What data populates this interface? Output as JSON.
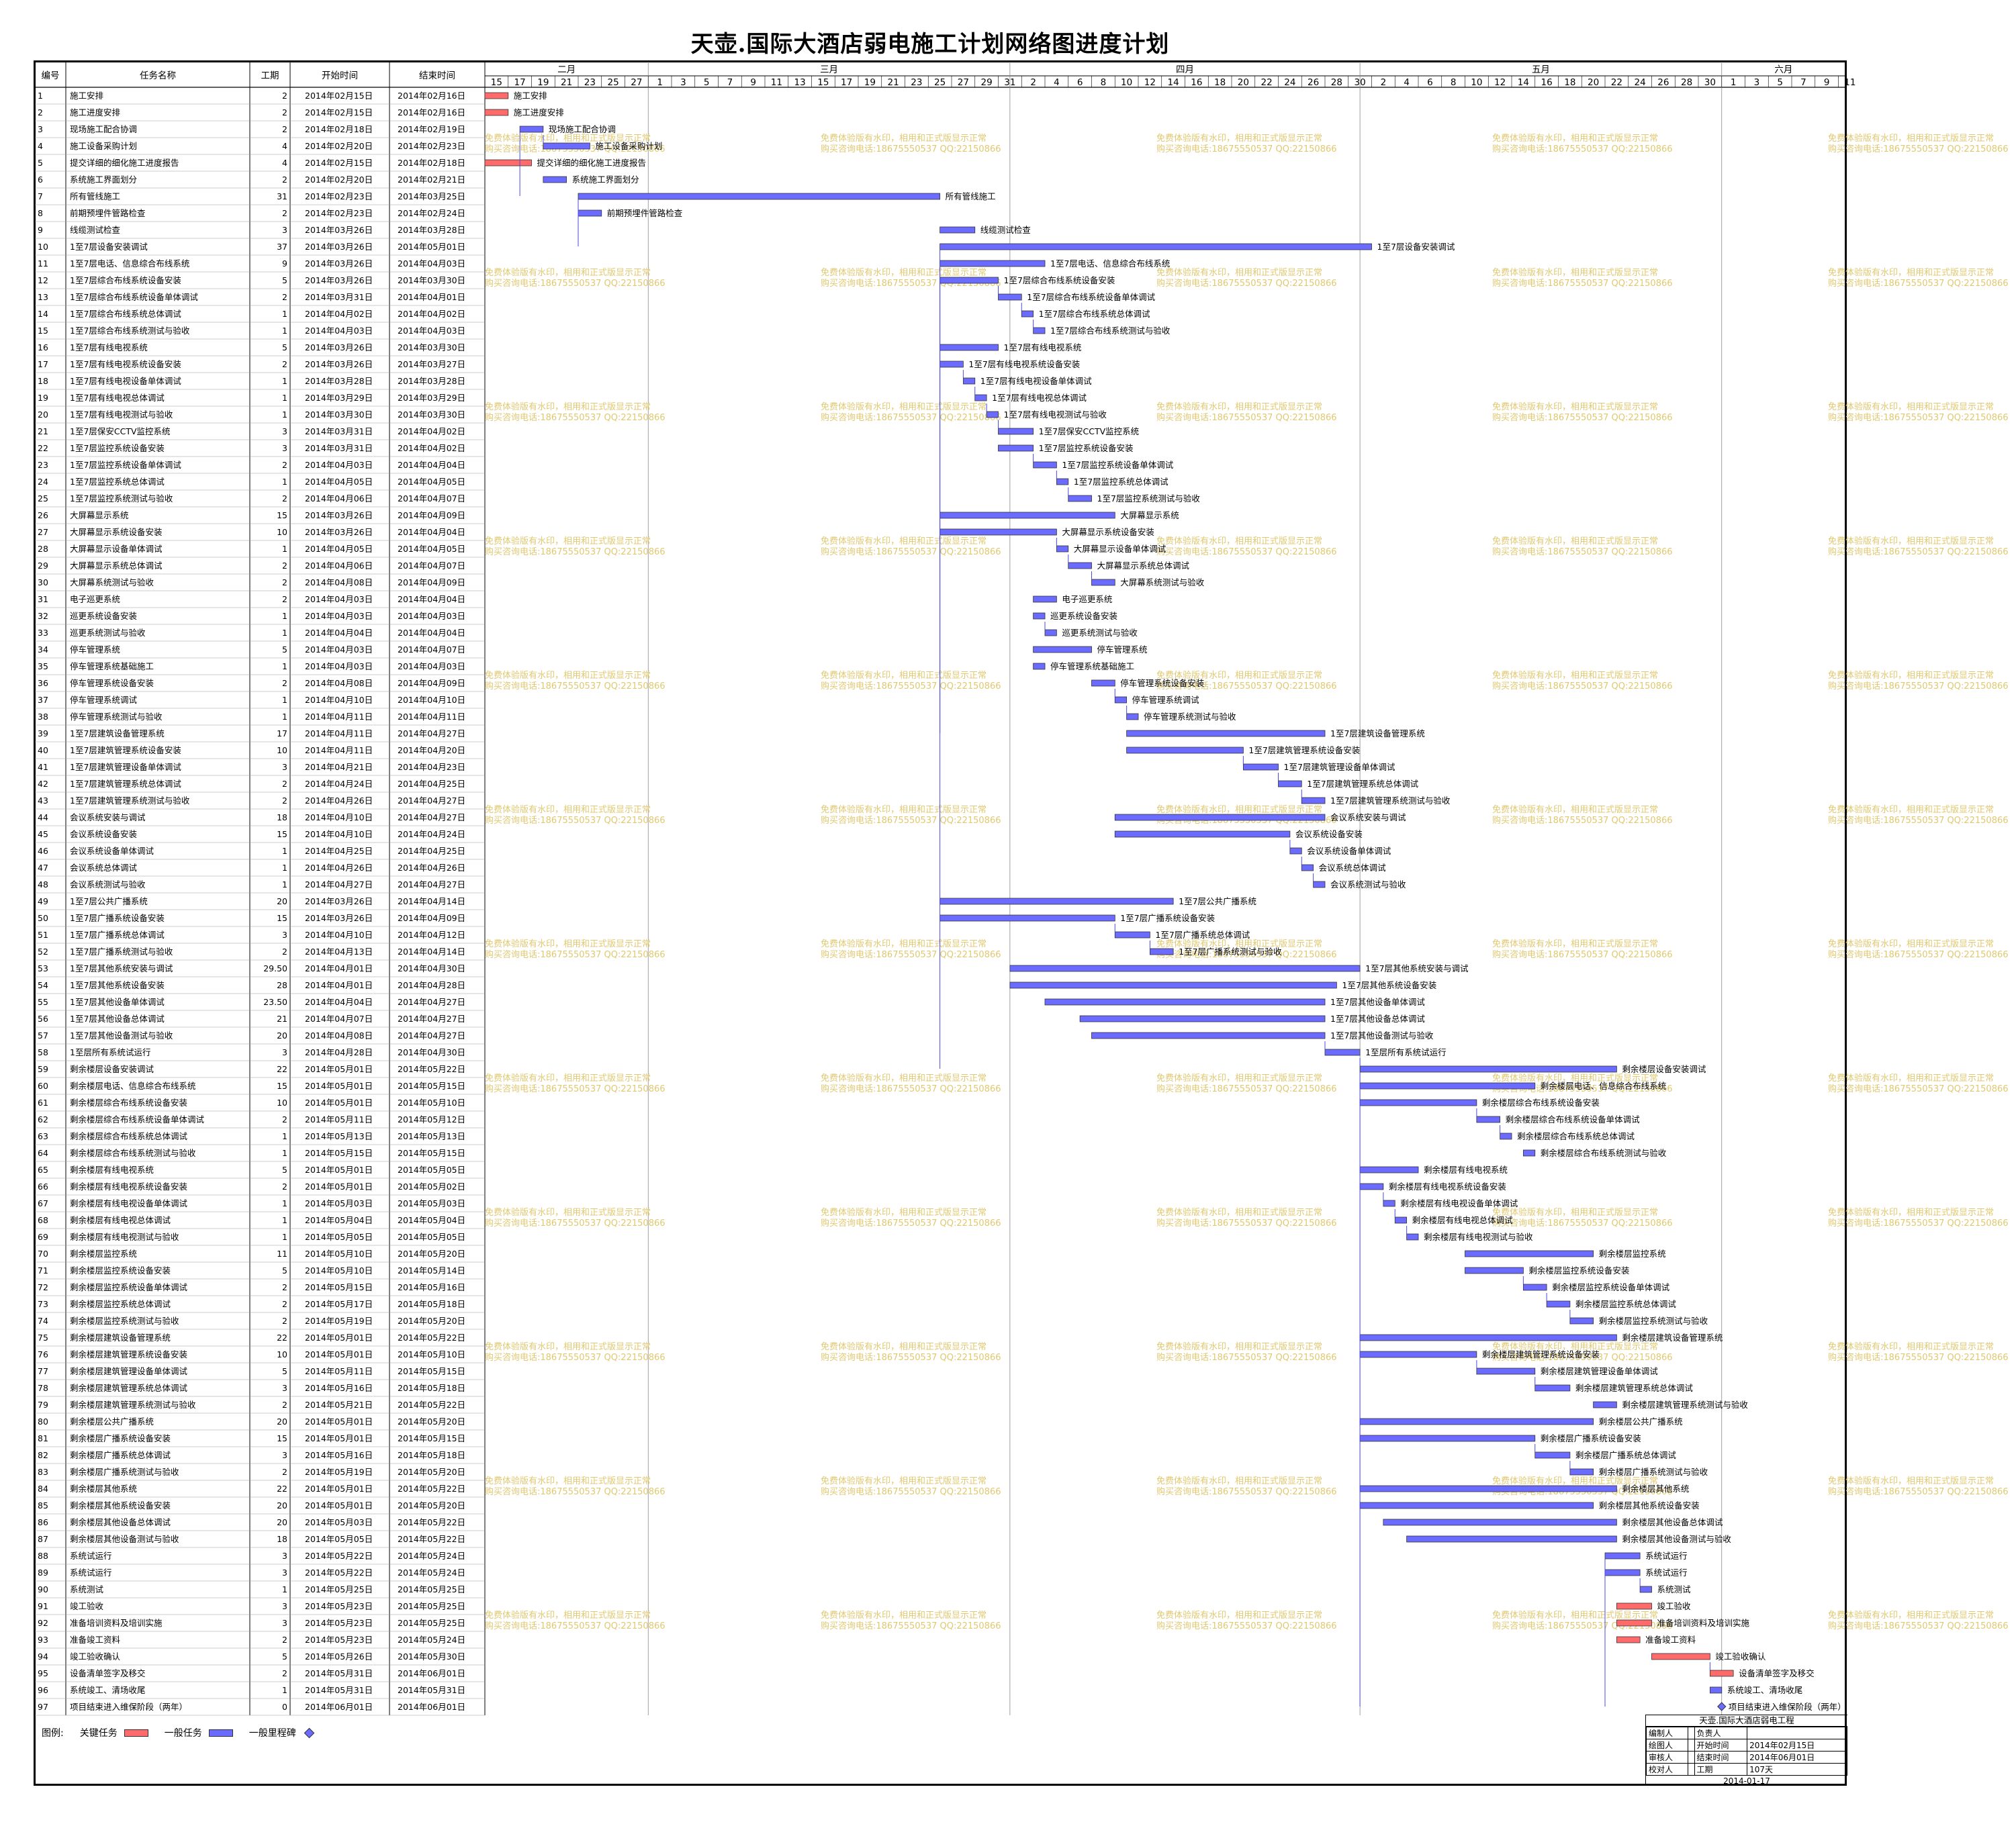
{
  "title": "天壶.国际大酒店弱电施工计划网络图进度计划",
  "columns": {
    "id": "编号",
    "name": "任务名称",
    "duration": "工期",
    "start": "开始时间",
    "end": "结束时间"
  },
  "months": [
    {
      "label": "二月",
      "days": [
        15,
        17,
        19,
        21,
        23,
        25,
        27
      ]
    },
    {
      "label": "三月",
      "days": [
        1,
        3,
        5,
        7,
        9,
        11,
        13,
        15,
        17,
        19,
        21,
        23,
        25,
        27,
        29,
        31
      ]
    },
    {
      "label": "四月",
      "days": [
        2,
        4,
        6,
        8,
        10,
        12,
        14,
        16,
        18,
        20,
        22,
        24,
        26,
        28,
        30
      ]
    },
    {
      "label": "五月",
      "days": [
        2,
        4,
        6,
        8,
        10,
        12,
        14,
        16,
        18,
        20,
        22,
        24,
        26,
        28,
        30
      ]
    },
    {
      "label": "六月",
      "days": [
        1,
        3,
        5,
        7,
        9,
        11
      ]
    }
  ],
  "watermark": {
    "line1": "免费体验版有水印，相用和正式版显示正常",
    "line2": "购买咨询电话:18675550537 QQ:22150866"
  },
  "legend": {
    "label": "图例:",
    "critical": "关键任务",
    "normal": "一般任务",
    "milestone": "一般里程碑"
  },
  "colors": {
    "critical": "#ff6b6b",
    "normal": "#6b6bff",
    "link": "#4a4ae0"
  },
  "info_box": {
    "project": "天壶.国际大酒店弱电工程",
    "rows": [
      [
        "编制人",
        "",
        "负责人",
        ""
      ],
      [
        "绘图人",
        "",
        "开始时间",
        "2014年02月15日"
      ],
      [
        "审核人",
        "",
        "结束时间",
        "2014年06月01日"
      ],
      [
        "校对人",
        "",
        "工期",
        "107天"
      ]
    ],
    "date": "2014-01-17"
  },
  "chart_data": {
    "type": "gantt",
    "x_range": [
      "2014-02-15",
      "2014-06-11"
    ],
    "tasks": [
      [
        1,
        "施工安排",
        "2",
        "2014年02月15日",
        "2014年02月16日",
        "critical"
      ],
      [
        2,
        "施工进度安排",
        "2",
        "2014年02月15日",
        "2014年02月16日",
        "critical"
      ],
      [
        3,
        "现场施工配合协调",
        "2",
        "2014年02月18日",
        "2014年02月19日",
        "normal"
      ],
      [
        4,
        "施工设备采购计划",
        "4",
        "2014年02月20日",
        "2014年02月23日",
        "normal"
      ],
      [
        5,
        "提交详细的细化施工进度报告",
        "4",
        "2014年02月15日",
        "2014年02月18日",
        "critical"
      ],
      [
        6,
        "系统施工界面划分",
        "2",
        "2014年02月20日",
        "2014年02月21日",
        "normal"
      ],
      [
        7,
        "所有管线施工",
        "31",
        "2014年02月23日",
        "2014年03月25日",
        "normal"
      ],
      [
        8,
        "前期预埋件管路检查",
        "2",
        "2014年02月23日",
        "2014年02月24日",
        "normal"
      ],
      [
        9,
        "线缆测试检查",
        "3",
        "2014年03月26日",
        "2014年03月28日",
        "normal"
      ],
      [
        10,
        "1至7层设备安装调试",
        "37",
        "2014年03月26日",
        "2014年05月01日",
        "normal"
      ],
      [
        11,
        "1至7层电话、信息综合布线系统",
        "9",
        "2014年03月26日",
        "2014年04月03日",
        "normal"
      ],
      [
        12,
        "1至7层综合布线系统设备安装",
        "5",
        "2014年03月26日",
        "2014年03月30日",
        "normal"
      ],
      [
        13,
        "1至7层综合布线系统设备单体调试",
        "2",
        "2014年03月31日",
        "2014年04月01日",
        "normal"
      ],
      [
        14,
        "1至7层综合布线系统总体调试",
        "1",
        "2014年04月02日",
        "2014年04月02日",
        "normal"
      ],
      [
        15,
        "1至7层综合布线系统测试与验收",
        "1",
        "2014年04月03日",
        "2014年04月03日",
        "normal"
      ],
      [
        16,
        "1至7层有线电视系统",
        "5",
        "2014年03月26日",
        "2014年03月30日",
        "normal"
      ],
      [
        17,
        "1至7层有线电视系统设备安装",
        "2",
        "2014年03月26日",
        "2014年03月27日",
        "normal"
      ],
      [
        18,
        "1至7层有线电视设备单体调试",
        "1",
        "2014年03月28日",
        "2014年03月28日",
        "normal"
      ],
      [
        19,
        "1至7层有线电视总体调试",
        "1",
        "2014年03月29日",
        "2014年03月29日",
        "normal"
      ],
      [
        20,
        "1至7层有线电视测试与验收",
        "1",
        "2014年03月30日",
        "2014年03月30日",
        "normal"
      ],
      [
        21,
        "1至7层保安CCTV监控系统",
        "3",
        "2014年03月31日",
        "2014年04月02日",
        "normal"
      ],
      [
        22,
        "1至7层监控系统设备安装",
        "3",
        "2014年03月31日",
        "2014年04月02日",
        "normal"
      ],
      [
        23,
        "1至7层监控系统设备单体调试",
        "2",
        "2014年04月03日",
        "2014年04月04日",
        "normal"
      ],
      [
        24,
        "1至7层监控系统总体调试",
        "1",
        "2014年04月05日",
        "2014年04月05日",
        "normal"
      ],
      [
        25,
        "1至7层监控系统测试与验收",
        "2",
        "2014年04月06日",
        "2014年04月07日",
        "normal"
      ],
      [
        26,
        "大屏幕显示系统",
        "15",
        "2014年03月26日",
        "2014年04月09日",
        "normal"
      ],
      [
        27,
        "大屏幕显示系统设备安装",
        "10",
        "2014年03月26日",
        "2014年04月04日",
        "normal"
      ],
      [
        28,
        "大屏幕显示设备单体调试",
        "1",
        "2014年04月05日",
        "2014年04月05日",
        "normal"
      ],
      [
        29,
        "大屏幕显示系统总体调试",
        "2",
        "2014年04月06日",
        "2014年04月07日",
        "normal"
      ],
      [
        30,
        "大屏幕系统测试与验收",
        "2",
        "2014年04月08日",
        "2014年04月09日",
        "normal"
      ],
      [
        31,
        "电子巡更系统",
        "2",
        "2014年04月03日",
        "2014年04月04日",
        "normal"
      ],
      [
        32,
        "巡更系统设备安装",
        "1",
        "2014年04月03日",
        "2014年04月03日",
        "normal"
      ],
      [
        33,
        "巡更系统测试与验收",
        "1",
        "2014年04月04日",
        "2014年04月04日",
        "normal"
      ],
      [
        34,
        "停车管理系统",
        "5",
        "2014年04月03日",
        "2014年04月07日",
        "normal"
      ],
      [
        35,
        "停车管理系统基础施工",
        "1",
        "2014年04月03日",
        "2014年04月03日",
        "normal"
      ],
      [
        36,
        "停车管理系统设备安装",
        "2",
        "2014年04月08日",
        "2014年04月09日",
        "normal"
      ],
      [
        37,
        "停车管理系统调试",
        "1",
        "2014年04月10日",
        "2014年04月10日",
        "normal"
      ],
      [
        38,
        "停车管理系统测试与验收",
        "1",
        "2014年04月11日",
        "2014年04月11日",
        "normal"
      ],
      [
        39,
        "1至7层建筑设备管理系统",
        "17",
        "2014年04月11日",
        "2014年04月27日",
        "normal"
      ],
      [
        40,
        "1至7层建筑管理系统设备安装",
        "10",
        "2014年04月11日",
        "2014年04月20日",
        "normal"
      ],
      [
        41,
        "1至7层建筑管理设备单体调试",
        "3",
        "2014年04月21日",
        "2014年04月23日",
        "normal"
      ],
      [
        42,
        "1至7层建筑管理系统总体调试",
        "2",
        "2014年04月24日",
        "2014年04月25日",
        "normal"
      ],
      [
        43,
        "1至7层建筑管理系统测试与验收",
        "2",
        "2014年04月26日",
        "2014年04月27日",
        "normal"
      ],
      [
        44,
        "会议系统安装与调试",
        "18",
        "2014年04月10日",
        "2014年04月27日",
        "normal"
      ],
      [
        45,
        "会议系统设备安装",
        "15",
        "2014年04月10日",
        "2014年04月24日",
        "normal"
      ],
      [
        46,
        "会议系统设备单体调试",
        "1",
        "2014年04月25日",
        "2014年04月25日",
        "normal"
      ],
      [
        47,
        "会议系统总体调试",
        "1",
        "2014年04月26日",
        "2014年04月26日",
        "normal"
      ],
      [
        48,
        "会议系统测试与验收",
        "1",
        "2014年04月27日",
        "2014年04月27日",
        "normal"
      ],
      [
        49,
        "1至7层公共广播系统",
        "20",
        "2014年03月26日",
        "2014年04月14日",
        "normal"
      ],
      [
        50,
        "1至7层广播系统设备安装",
        "15",
        "2014年03月26日",
        "2014年04月09日",
        "normal"
      ],
      [
        51,
        "1至7层广播系统总体调试",
        "3",
        "2014年04月10日",
        "2014年04月12日",
        "normal"
      ],
      [
        52,
        "1至7层广播系统测试与验收",
        "2",
        "2014年04月13日",
        "2014年04月14日",
        "normal"
      ],
      [
        53,
        "1至7层其他系统安装与调试",
        "29.50",
        "2014年04月01日",
        "2014年04月30日",
        "normal"
      ],
      [
        54,
        "1至7层其他系统设备安装",
        "28",
        "2014年04月01日",
        "2014年04月28日",
        "normal"
      ],
      [
        55,
        "1至7层其他设备单体调试",
        "23.50",
        "2014年04月04日",
        "2014年04月27日",
        "normal"
      ],
      [
        56,
        "1至7层其他设备总体调试",
        "21",
        "2014年04月07日",
        "2014年04月27日",
        "normal"
      ],
      [
        57,
        "1至7层其他设备测试与验收",
        "20",
        "2014年04月08日",
        "2014年04月27日",
        "normal"
      ],
      [
        58,
        "1至层所有系统试运行",
        "3",
        "2014年04月28日",
        "2014年04月30日",
        "normal"
      ],
      [
        59,
        "剩余楼层设备安装调试",
        "22",
        "2014年05月01日",
        "2014年05月22日",
        "normal"
      ],
      [
        60,
        "剩余楼层电话、信息综合布线系统",
        "15",
        "2014年05月01日",
        "2014年05月15日",
        "normal"
      ],
      [
        61,
        "剩余楼层综合布线系统设备安装",
        "10",
        "2014年05月01日",
        "2014年05月10日",
        "normal"
      ],
      [
        62,
        "剩余楼层综合布线系统设备单体调试",
        "2",
        "2014年05月11日",
        "2014年05月12日",
        "normal"
      ],
      [
        63,
        "剩余楼层综合布线系统总体调试",
        "1",
        "2014年05月13日",
        "2014年05月13日",
        "normal"
      ],
      [
        64,
        "剩余楼层综合布线系统测试与验收",
        "1",
        "2014年05月15日",
        "2014年05月15日",
        "normal"
      ],
      [
        65,
        "剩余楼层有线电视系统",
        "5",
        "2014年05月01日",
        "2014年05月05日",
        "normal"
      ],
      [
        66,
        "剩余楼层有线电视系统设备安装",
        "2",
        "2014年05月01日",
        "2014年05月02日",
        "normal"
      ],
      [
        67,
        "剩余楼层有线电视设备单体调试",
        "1",
        "2014年05月03日",
        "2014年05月03日",
        "normal"
      ],
      [
        68,
        "剩余楼层有线电视总体调试",
        "1",
        "2014年05月04日",
        "2014年05月04日",
        "normal"
      ],
      [
        69,
        "剩余楼层有线电视测试与验收",
        "1",
        "2014年05月05日",
        "2014年05月05日",
        "normal"
      ],
      [
        70,
        "剩余楼层监控系统",
        "11",
        "2014年05月10日",
        "2014年05月20日",
        "normal"
      ],
      [
        71,
        "剩余楼层监控系统设备安装",
        "5",
        "2014年05月10日",
        "2014年05月14日",
        "normal"
      ],
      [
        72,
        "剩余楼层监控系统设备单体调试",
        "2",
        "2014年05月15日",
        "2014年05月16日",
        "normal"
      ],
      [
        73,
        "剩余楼层监控系统总体调试",
        "2",
        "2014年05月17日",
        "2014年05月18日",
        "normal"
      ],
      [
        74,
        "剩余楼层监控系统测试与验收",
        "2",
        "2014年05月19日",
        "2014年05月20日",
        "normal"
      ],
      [
        75,
        "剩余楼层建筑设备管理系统",
        "22",
        "2014年05月01日",
        "2014年05月22日",
        "normal"
      ],
      [
        76,
        "剩余楼层建筑管理系统设备安装",
        "10",
        "2014年05月01日",
        "2014年05月10日",
        "normal"
      ],
      [
        77,
        "剩余楼层建筑管理设备单体调试",
        "5",
        "2014年05月11日",
        "2014年05月15日",
        "normal"
      ],
      [
        78,
        "剩余楼层建筑管理系统总体调试",
        "3",
        "2014年05月16日",
        "2014年05月18日",
        "normal"
      ],
      [
        79,
        "剩余楼层建筑管理系统测试与验收",
        "2",
        "2014年05月21日",
        "2014年05月22日",
        "normal"
      ],
      [
        80,
        "剩余楼层公共广播系统",
        "20",
        "2014年05月01日",
        "2014年05月20日",
        "normal"
      ],
      [
        81,
        "剩余楼层广播系统设备安装",
        "15",
        "2014年05月01日",
        "2014年05月15日",
        "normal"
      ],
      [
        82,
        "剩余楼层广播系统总体调试",
        "3",
        "2014年05月16日",
        "2014年05月18日",
        "normal"
      ],
      [
        83,
        "剩余楼层广播系统测试与验收",
        "2",
        "2014年05月19日",
        "2014年05月20日",
        "normal"
      ],
      [
        84,
        "剩余楼层其他系统",
        "22",
        "2014年05月01日",
        "2014年05月22日",
        "normal"
      ],
      [
        85,
        "剩余楼层其他系统设备安装",
        "20",
        "2014年05月01日",
        "2014年05月20日",
        "normal"
      ],
      [
        86,
        "剩余楼层其他设备总体调试",
        "20",
        "2014年05月03日",
        "2014年05月22日",
        "normal"
      ],
      [
        87,
        "剩余楼层其他设备测试与验收",
        "18",
        "2014年05月05日",
        "2014年05月22日",
        "normal"
      ],
      [
        88,
        "系统试运行",
        "3",
        "2014年05月22日",
        "2014年05月24日",
        "normal"
      ],
      [
        89,
        "系统试运行",
        "3",
        "2014年05月22日",
        "2014年05月24日",
        "normal"
      ],
      [
        90,
        "系统测试",
        "1",
        "2014年05月25日",
        "2014年05月25日",
        "normal"
      ],
      [
        91,
        "竣工验收",
        "3",
        "2014年05月23日",
        "2014年05月25日",
        "critical"
      ],
      [
        92,
        "准备培训资料及培训实施",
        "3",
        "2014年05月23日",
        "2014年05月25日",
        "critical"
      ],
      [
        93,
        "准备竣工资料",
        "2",
        "2014年05月23日",
        "2014年05月24日",
        "critical"
      ],
      [
        94,
        "竣工验收确认",
        "5",
        "2014年05月26日",
        "2014年05月30日",
        "critical"
      ],
      [
        95,
        "设备清单签字及移交",
        "2",
        "2014年05月31日",
        "2014年06月01日",
        "critical"
      ],
      [
        96,
        "系统竣工、清场收尾",
        "1",
        "2014年05月31日",
        "2014年05月31日",
        "normal"
      ],
      [
        97,
        "项目结束进入维保阶段（两年）",
        "0",
        "2014年06月01日",
        "2014年06月01日",
        "milestone"
      ]
    ]
  }
}
